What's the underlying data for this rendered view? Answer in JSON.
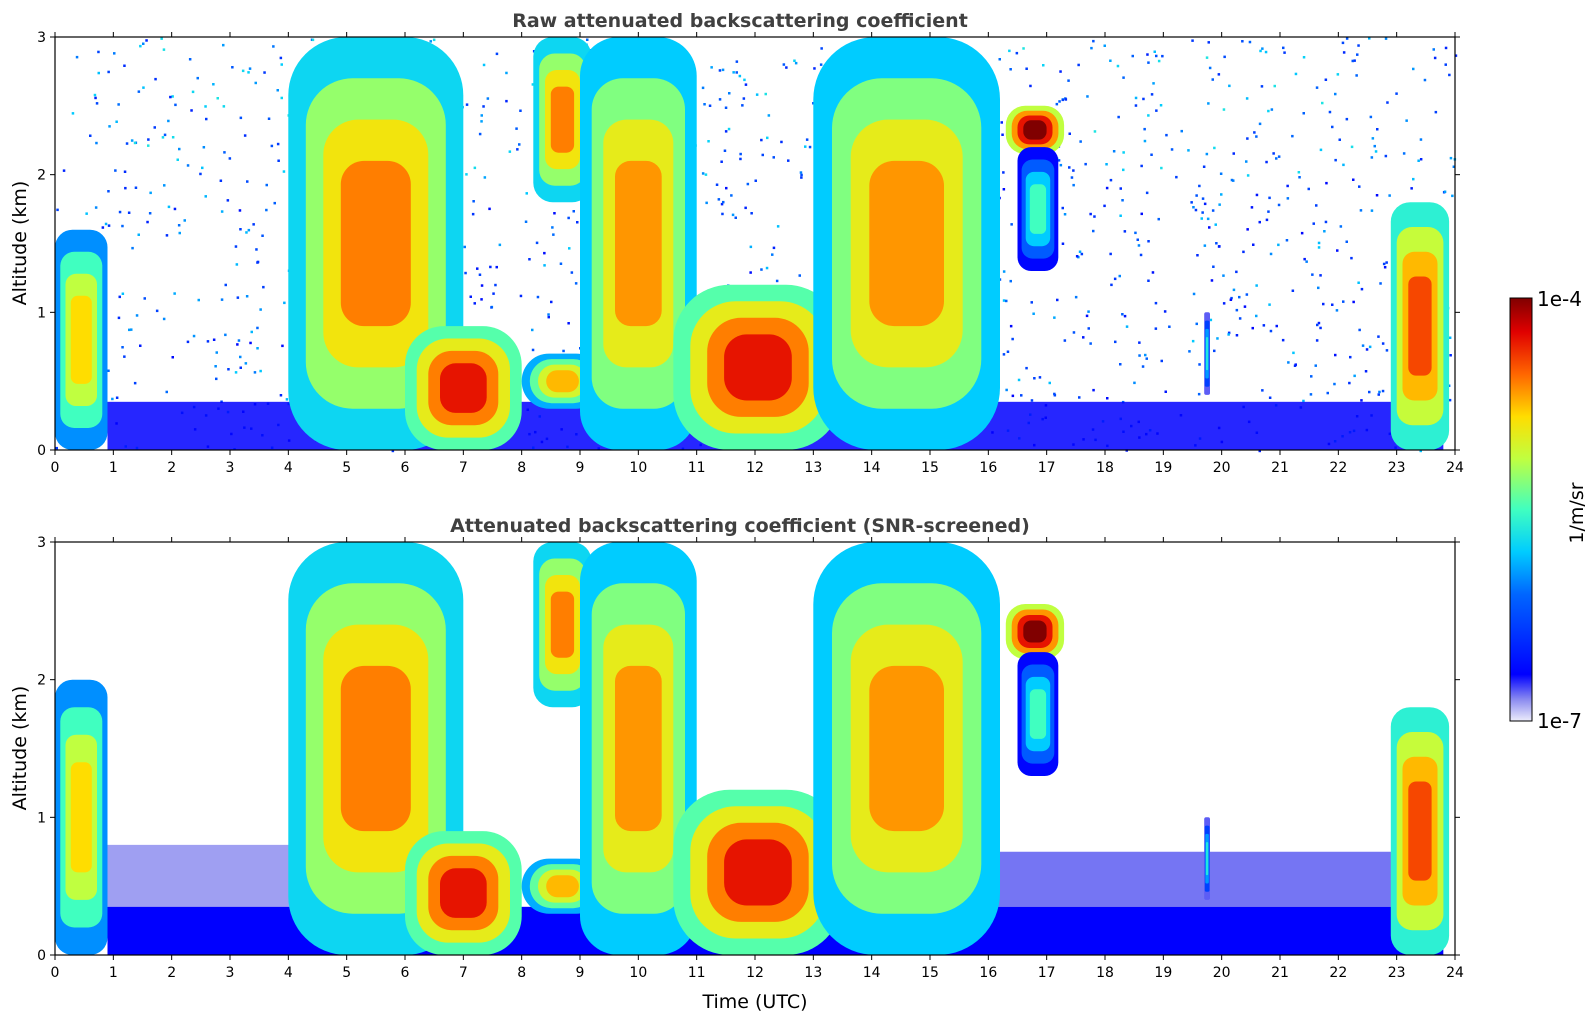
{
  "chart_data": [
    {
      "type": "heatmap",
      "title": "Raw attenuated backscattering coefficient",
      "xlabel": "",
      "ylabel": "Altitude (km)",
      "xlim": [
        0,
        24
      ],
      "ylim": [
        0,
        3
      ],
      "x_ticks": [
        "0",
        "1",
        "2",
        "3",
        "4",
        "5",
        "6",
        "7",
        "8",
        "9",
        "10",
        "11",
        "12",
        "13",
        "14",
        "15",
        "16",
        "17",
        "18",
        "19",
        "20",
        "21",
        "22",
        "23",
        "24"
      ],
      "y_ticks": [
        "0",
        "1",
        "2",
        "3"
      ],
      "screened": false,
      "features": [
        {
          "id": "early-boundary-layer",
          "t": [
            0.0,
            0.9
          ],
          "z": [
            0.0,
            1.6
          ],
          "level": 0.72
        },
        {
          "id": "descending-cloud-4-7h",
          "t": [
            4.0,
            7.0
          ],
          "z": [
            0.0,
            3.0
          ],
          "level": 0.8
        },
        {
          "id": "low-cloud-6-8h",
          "t": [
            6.0,
            8.0
          ],
          "z": [
            0.0,
            0.9
          ],
          "level": 0.9
        },
        {
          "id": "patch-8-9h",
          "t": [
            8.0,
            9.4
          ],
          "z": [
            0.3,
            0.7
          ],
          "level": 0.75
        },
        {
          "id": "upper-cloud-8-9h",
          "t": [
            8.2,
            9.2
          ],
          "z": [
            1.8,
            3.0
          ],
          "level": 0.8
        },
        {
          "id": "layer-9-11h",
          "t": [
            9.0,
            11.0
          ],
          "z": [
            0.0,
            3.0
          ],
          "level": 0.78
        },
        {
          "id": "dense-11-13h",
          "t": [
            10.6,
            13.5
          ],
          "z": [
            0.0,
            1.2
          ],
          "level": 0.9
        },
        {
          "id": "rising-cloud-13-16h",
          "t": [
            13.0,
            16.2
          ],
          "z": [
            0.0,
            3.0
          ],
          "level": 0.78
        },
        {
          "id": "thin-layer-17h",
          "t": [
            16.3,
            17.3
          ],
          "z": [
            2.15,
            2.5
          ],
          "level": 1.0
        },
        {
          "id": "virga-17h",
          "t": [
            16.5,
            17.2
          ],
          "z": [
            1.3,
            2.2
          ],
          "level": 0.5
        },
        {
          "id": "plume-19.8h",
          "t": [
            19.7,
            19.8
          ],
          "z": [
            0.4,
            1.0
          ],
          "level": 0.45
        },
        {
          "id": "late-cloud-23h",
          "t": [
            22.9,
            23.9
          ],
          "z": [
            0.0,
            1.8
          ],
          "level": 0.85
        }
      ]
    },
    {
      "type": "heatmap",
      "title": "Attenuated backscattering coefficient (SNR-screened)",
      "xlabel": "Time (UTC)",
      "ylabel": "Altitude (km)",
      "xlim": [
        0,
        24
      ],
      "ylim": [
        0,
        3
      ],
      "x_ticks": [
        "0",
        "1",
        "2",
        "3",
        "4",
        "5",
        "6",
        "7",
        "8",
        "9",
        "10",
        "11",
        "12",
        "13",
        "14",
        "15",
        "16",
        "17",
        "18",
        "19",
        "20",
        "21",
        "22",
        "23",
        "24"
      ],
      "y_ticks": [
        "0",
        "1",
        "2",
        "3"
      ],
      "screened": true,
      "features": [
        {
          "id": "early-boundary-layer",
          "t": [
            0.0,
            0.9
          ],
          "z": [
            0.0,
            2.0
          ],
          "level": 0.72
        },
        {
          "id": "descending-cloud-4-7h",
          "t": [
            4.0,
            7.0
          ],
          "z": [
            0.0,
            3.0
          ],
          "level": 0.8
        },
        {
          "id": "low-cloud-6-8h",
          "t": [
            6.0,
            8.0
          ],
          "z": [
            0.0,
            0.9
          ],
          "level": 0.9
        },
        {
          "id": "patch-8-9h",
          "t": [
            8.0,
            9.4
          ],
          "z": [
            0.3,
            0.7
          ],
          "level": 0.75
        },
        {
          "id": "upper-cloud-8-9h",
          "t": [
            8.2,
            9.2
          ],
          "z": [
            1.8,
            3.0
          ],
          "level": 0.8
        },
        {
          "id": "layer-9-11h",
          "t": [
            9.0,
            11.0
          ],
          "z": [
            0.0,
            3.0
          ],
          "level": 0.78
        },
        {
          "id": "dense-11-13h",
          "t": [
            10.6,
            13.5
          ],
          "z": [
            0.0,
            1.2
          ],
          "level": 0.9
        },
        {
          "id": "rising-cloud-13-16h",
          "t": [
            13.0,
            16.2
          ],
          "z": [
            0.0,
            3.0
          ],
          "level": 0.78
        },
        {
          "id": "thin-layer-17h",
          "t": [
            16.3,
            17.3
          ],
          "z": [
            2.15,
            2.55
          ],
          "level": 1.0
        },
        {
          "id": "virga-17h",
          "t": [
            16.5,
            17.2
          ],
          "z": [
            1.3,
            2.2
          ],
          "level": 0.5
        },
        {
          "id": "plume-19.8h",
          "t": [
            19.7,
            19.8
          ],
          "z": [
            0.4,
            1.0
          ],
          "level": 0.45
        },
        {
          "id": "late-cloud-23h",
          "t": [
            22.9,
            23.9
          ],
          "z": [
            0.0,
            1.8
          ],
          "level": 0.85
        }
      ]
    }
  ],
  "colorbar": {
    "label": "1/m/sr",
    "max_label": "1e-4",
    "min_label": "1e-7",
    "vmin": 1e-07,
    "vmax": 0.0001,
    "scale": "log",
    "colormap": "jet"
  },
  "colors": {
    "title_text": "#404040",
    "background": "#ffffff",
    "noise_blue": "#0000ff",
    "dense_red": "#8b0000"
  }
}
